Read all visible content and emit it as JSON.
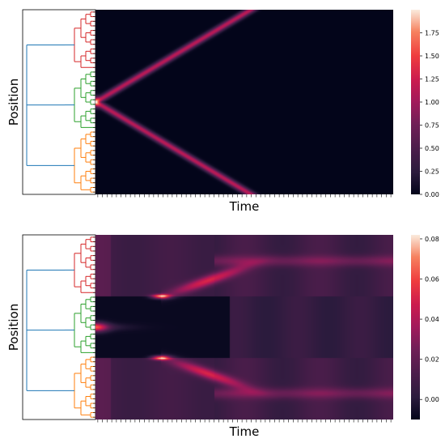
{
  "chart_data": [
    {
      "type": "heatmap",
      "title": "",
      "xlabel": "Time",
      "ylabel": "Position",
      "colormap": "rocket",
      "dendrogram_colors": {
        "top_cluster": "#d62728",
        "middle_cluster": "#2ca02c",
        "bottom_cluster": "#ff7f0e",
        "link": "#1f77b4"
      },
      "pattern": {
        "source_row_fraction": 0.5,
        "reach_fraction_of_time": 0.52,
        "peak": 2.0
      },
      "colorbar": {
        "min": 0.0,
        "max": 2.0,
        "ticks": [
          0.0,
          0.25,
          0.5,
          0.75,
          1.0,
          1.25,
          1.5,
          1.75
        ]
      },
      "colorbar_labels": [
        "0.00",
        "0.25",
        "0.50",
        "0.75",
        "1.00",
        "1.25",
        "1.50",
        "1.75"
      ]
    },
    {
      "type": "heatmap",
      "title": "",
      "xlabel": "Time",
      "ylabel": "Position",
      "colormap": "rocket",
      "dendrogram_colors": {
        "top_cluster": "#d62728",
        "middle_cluster": "#2ca02c",
        "bottom_cluster": "#ff7f0e",
        "link": "#1f77b4"
      },
      "colorbar": {
        "min": -0.01,
        "max": 0.082,
        "ticks": [
          0.0,
          0.02,
          0.04,
          0.06,
          0.08
        ]
      },
      "colorbar_labels": [
        "0.00",
        "0.02",
        "0.04",
        "0.06",
        "0.08"
      ]
    }
  ]
}
